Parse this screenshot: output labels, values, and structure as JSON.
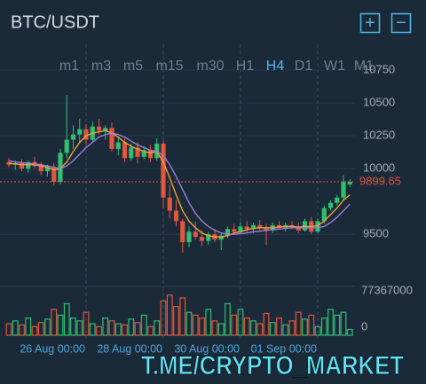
{
  "header": {
    "title": "BTC/USDT",
    "buttons": [
      "+",
      "−"
    ]
  },
  "timeframes": [
    "m1",
    "m3",
    "m5",
    "m15",
    "m30",
    "H1",
    "H4",
    "D1",
    "W1",
    "M1"
  ],
  "active_timeframe_index": 6,
  "watermark": "T.ME/CRYPTO_MARKET",
  "chart_data": {
    "type": "candlestick",
    "categories": [
      null,
      null,
      null,
      null,
      null,
      null,
      null,
      null,
      null,
      null,
      null,
      null,
      "26 Aug 00:00",
      null,
      null,
      null,
      null,
      null,
      null,
      null,
      null,
      null,
      null,
      null,
      "28 Aug 00:00",
      null,
      null,
      null,
      null,
      null,
      null,
      null,
      null,
      null,
      null,
      null,
      "30 Aug 00:00",
      null,
      null,
      null,
      null,
      null,
      null,
      null,
      null,
      null,
      null,
      null,
      "01 Sep 00:00",
      null,
      null,
      null,
      null,
      null
    ],
    "open": [
      10050,
      10030,
      10040,
      10000,
      10050,
      10020,
      9980,
      10010,
      9900,
      10120,
      10220,
      10260,
      10300,
      10220,
      10320,
      10290,
      10310,
      10150,
      10200,
      10080,
      10160,
      10090,
      10140,
      10080,
      10190,
      9780,
      9680,
      9600,
      9440,
      9520,
      9480,
      9450,
      9500,
      9460,
      9490,
      9540,
      9520,
      9560,
      9540,
      9570,
      9550,
      9530,
      9570,
      9550,
      9570,
      9555,
      9530,
      9600,
      9520,
      9600,
      9700,
      9740,
      9780,
      9880
    ],
    "high": [
      10080,
      10060,
      10070,
      10060,
      10090,
      10050,
      10030,
      10040,
      10150,
      10560,
      10330,
      10380,
      10340,
      10360,
      10380,
      10330,
      10350,
      10240,
      10230,
      10190,
      10200,
      10170,
      10180,
      10230,
      10210,
      9880,
      9760,
      9620,
      9560,
      9600,
      9530,
      9520,
      9540,
      9510,
      9560,
      9580,
      9590,
      9600,
      9590,
      9610,
      9580,
      9590,
      9600,
      9590,
      9600,
      9590,
      9620,
      9630,
      9620,
      9720,
      9760,
      9800,
      9950,
      9920
    ],
    "low": [
      10010,
      9990,
      9980,
      9970,
      10000,
      9950,
      9940,
      9870,
      9880,
      10080,
      10150,
      10200,
      10180,
      10200,
      10260,
      10220,
      10130,
      10100,
      10050,
      10060,
      10040,
      10070,
      10050,
      10060,
      9700,
      9620,
      9560,
      9360,
      9400,
      9460,
      9410,
      9420,
      9440,
      9380,
      9470,
      9500,
      9500,
      9520,
      9510,
      9530,
      9420,
      9510,
      9540,
      9520,
      9540,
      9510,
      9520,
      9500,
      9510,
      9580,
      9680,
      9720,
      9760,
      9860
    ],
    "close": [
      10030,
      10040,
      10000,
      10050,
      10020,
      9980,
      10010,
      9900,
      10120,
      10220,
      10260,
      10300,
      10220,
      10320,
      10290,
      10310,
      10150,
      10200,
      10080,
      10160,
      10090,
      10140,
      10080,
      10190,
      9780,
      9680,
      9600,
      9440,
      9520,
      9480,
      9450,
      9500,
      9460,
      9490,
      9540,
      9520,
      9560,
      9540,
      9570,
      9550,
      9530,
      9570,
      9550,
      9570,
      9555,
      9530,
      9600,
      9520,
      9600,
      9700,
      9740,
      9780,
      9900,
      9899.65
    ],
    "volume": [
      20000000,
      25000000,
      18000000,
      30000000,
      15000000,
      22000000,
      28000000,
      45000000,
      35000000,
      55000000,
      30000000,
      25000000,
      40000000,
      20000000,
      15000000,
      30000000,
      25000000,
      20000000,
      18000000,
      28000000,
      22000000,
      35000000,
      15000000,
      25000000,
      60000000,
      70000000,
      50000000,
      65000000,
      40000000,
      35000000,
      30000000,
      45000000,
      25000000,
      20000000,
      55000000,
      35000000,
      45000000,
      30000000,
      25000000,
      20000000,
      38000000,
      22000000,
      30000000,
      18000000,
      25000000,
      40000000,
      28000000,
      35000000,
      15000000,
      30000000,
      45000000,
      35000000,
      40000000,
      10000000
    ],
    "overlays": [
      {
        "color": "#f0a23a",
        "values": [
          10040,
          10035,
          10030,
          10030,
          10030,
          10020,
          10010,
          9990,
          10000,
          10050,
          10130,
          10200,
          10250,
          10270,
          10280,
          10290,
          10270,
          10240,
          10200,
          10170,
          10150,
          10130,
          10120,
          10130,
          10050,
          9930,
          9800,
          9680,
          9600,
          9550,
          9510,
          9490,
          9480,
          9480,
          9490,
          9510,
          9520,
          9535,
          9545,
          9550,
          9550,
          9550,
          9555,
          9560,
          9560,
          9555,
          9560,
          9560,
          9565,
          9600,
          9650,
          9700,
          9760,
          9800
        ]
      },
      {
        "color": "#9b7de0",
        "values": [
          10060,
          10050,
          10045,
          10040,
          10035,
          10030,
          10020,
          10010,
          10000,
          10020,
          10060,
          10110,
          10160,
          10200,
          10240,
          10260,
          10270,
          10260,
          10240,
          10210,
          10180,
          10160,
          10140,
          10130,
          10100,
          10030,
          9940,
          9840,
          9740,
          9660,
          9600,
          9560,
          9530,
          9510,
          9500,
          9500,
          9505,
          9510,
          9520,
          9525,
          9530,
          9535,
          9540,
          9545,
          9550,
          9550,
          9550,
          9550,
          9550,
          9560,
          9590,
          9630,
          9680,
          9730
        ]
      }
    ],
    "up_color": "#2fbf71",
    "down_color": "#e0563f",
    "ylim": [
      9110,
      10865
    ],
    "yticks": [
      9500,
      10000,
      10250,
      10500,
      10750
    ],
    "current_price": 9899.65,
    "current_price_color": "#e0563f",
    "volume_ylim": [
      0,
      77367000
    ],
    "volume_yticks": [
      0,
      77367000
    ],
    "grid": true
  }
}
